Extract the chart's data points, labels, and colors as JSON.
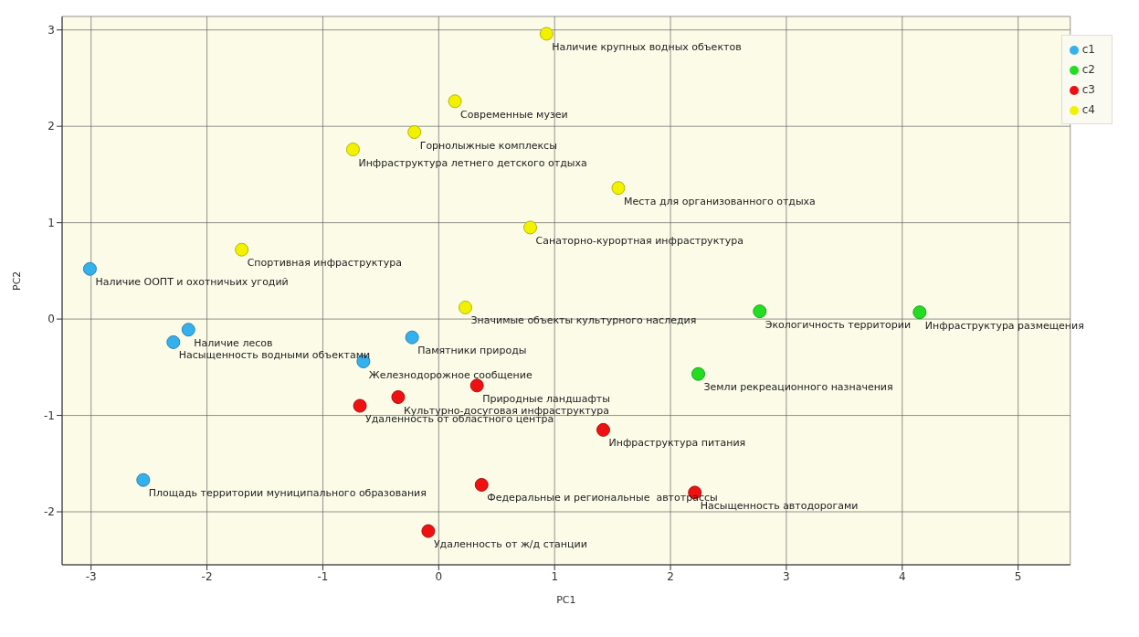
{
  "chart_data": {
    "type": "scatter",
    "xlabel": "PC1",
    "ylabel": "PC2",
    "xlim": [
      -3.25,
      5.45
    ],
    "ylim": [
      -2.55,
      3.14
    ],
    "xticks": [
      -3,
      -2,
      -1,
      0,
      1,
      2,
      3,
      4,
      5
    ],
    "yticks": [
      -2,
      -1,
      0,
      1,
      2,
      3
    ],
    "grid": true,
    "legend": "top right",
    "marker": "circle",
    "series": [
      {
        "name": "c1",
        "color": "#35b0ee",
        "x": [
          -3.01,
          -2.16,
          -2.29,
          -0.23,
          -0.65,
          -2.55
        ],
        "values": [
          0.52,
          -0.11,
          -0.24,
          -0.19,
          -0.44,
          -1.67
        ]
      },
      {
        "name": "c2",
        "color": "#22dd22",
        "x": [
          2.77,
          4.15,
          2.24
        ],
        "values": [
          0.08,
          0.07,
          -0.57
        ]
      },
      {
        "name": "c3",
        "color": "#ee1111",
        "x": [
          0.33,
          -0.35,
          -0.68,
          1.42,
          0.37,
          2.21,
          -0.09
        ],
        "values": [
          -0.69,
          -0.81,
          -0.9,
          -1.15,
          -1.72,
          -1.8,
          -2.2
        ]
      },
      {
        "name": "c4",
        "color": "#f2f200",
        "x": [
          0.93,
          0.14,
          -0.21,
          -0.74,
          1.55,
          0.79,
          -1.7,
          0.23
        ],
        "values": [
          2.96,
          2.26,
          1.94,
          1.76,
          1.36,
          0.95,
          0.72,
          0.12
        ]
      }
    ],
    "annotations": [
      {
        "text": "Наличие ООПТ и охотничьих угодий",
        "x": -3.01,
        "y": 0.52
      },
      {
        "text": "Наличие лесов",
        "x": -2.16,
        "y": -0.11
      },
      {
        "text": "Насыщенность водными объектами",
        "x": -2.29,
        "y": -0.24
      },
      {
        "text": "Памятники природы",
        "x": -0.23,
        "y": -0.19
      },
      {
        "text": "Железнодорожное сообщение",
        "x": -0.65,
        "y": -0.44
      },
      {
        "text": "Площадь территории муниципального образования",
        "x": -2.55,
        "y": -1.67
      },
      {
        "text": "Экологичность территории",
        "x": 2.77,
        "y": 0.08
      },
      {
        "text": "Инфраструктура размещения",
        "x": 4.15,
        "y": 0.07
      },
      {
        "text": "Земли рекреационного назначения",
        "x": 2.24,
        "y": -0.57
      },
      {
        "text": "Природные ландшафты",
        "x": 0.33,
        "y": -0.69
      },
      {
        "text": "Культурно-досуговая инфраструктура",
        "x": -0.35,
        "y": -0.81
      },
      {
        "text": "Удаленность от областного центра",
        "x": -0.68,
        "y": -0.9
      },
      {
        "text": "Инфраструктура питания",
        "x": 1.42,
        "y": -1.15
      },
      {
        "text": "Федеральные и региональные  автотрассы",
        "x": 0.37,
        "y": -1.72
      },
      {
        "text": "Насыщенность автодорогами",
        "x": 2.21,
        "y": -1.8
      },
      {
        "text": "Удаленность от ж/д станции",
        "x": -0.09,
        "y": -2.2
      },
      {
        "text": "Наличие крупных водных объектов",
        "x": 0.93,
        "y": 2.96
      },
      {
        "text": "Современные музеи",
        "x": 0.14,
        "y": 2.26
      },
      {
        "text": "Горнолыжные комплексы",
        "x": -0.21,
        "y": 1.94
      },
      {
        "text": "Инфраструктура летнего детского отдыха",
        "x": -0.74,
        "y": 1.76
      },
      {
        "text": "Места для организованного отдыха",
        "x": 1.55,
        "y": 1.36
      },
      {
        "text": "Санаторно-курортная инфраструктура",
        "x": 0.79,
        "y": 0.95
      },
      {
        "text": "Спортивная инфраструктура",
        "x": -1.7,
        "y": 0.72
      },
      {
        "text": "Значимые объекты культурного наследия",
        "x": 0.23,
        "y": 0.12
      }
    ]
  }
}
